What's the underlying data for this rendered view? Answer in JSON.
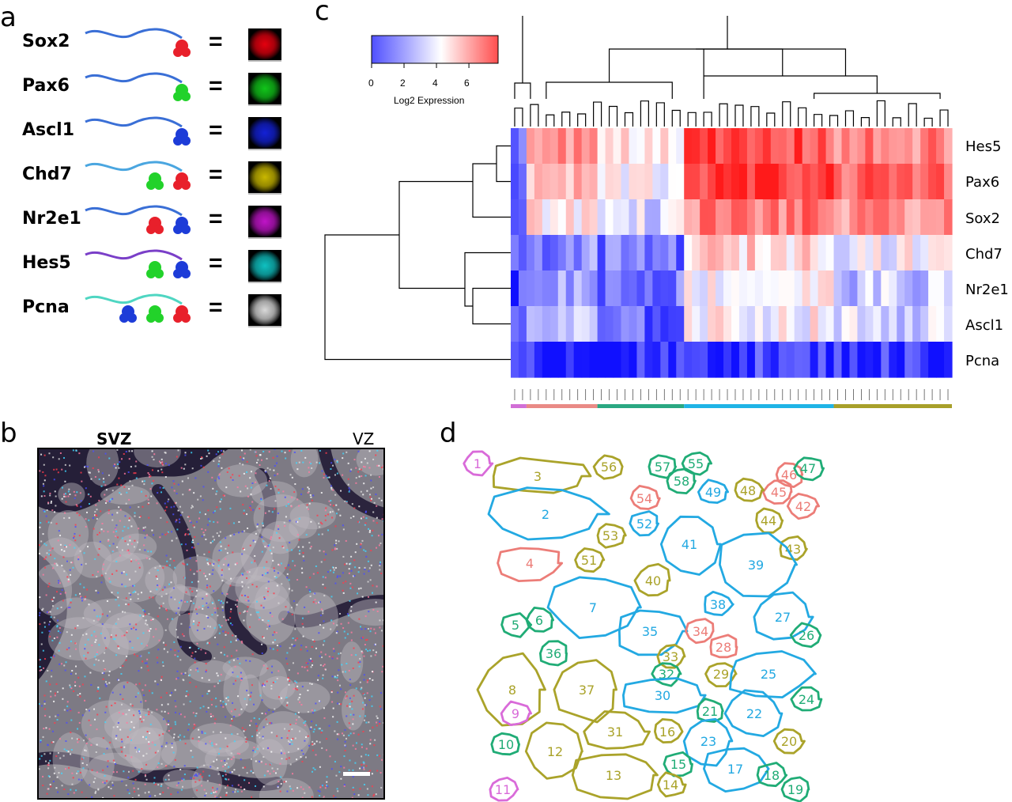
{
  "panels": {
    "a": "a",
    "b": "b",
    "c": "c",
    "d": "d"
  },
  "panel_a": {
    "genes": [
      {
        "name": "Sox2",
        "probe_colors": [
          "#e8202b"
        ],
        "tail_color": "#3a6fd6",
        "swatch": "#e4000f"
      },
      {
        "name": "Pax6",
        "probe_colors": [
          "#22d22a"
        ],
        "tail_color": "#3a6fd6",
        "swatch": "#11c51a"
      },
      {
        "name": "Ascl1",
        "probe_colors": [
          "#1d3cd8"
        ],
        "tail_color": "#3a6fd6",
        "swatch": "#1321d6"
      },
      {
        "name": "Chd7",
        "probe_colors": [
          "#22d22a",
          "#e8202b"
        ],
        "tail_color": "#4aa6e0",
        "swatch": "#c9b800"
      },
      {
        "name": "Nr2e1",
        "probe_colors": [
          "#e8202b",
          "#1d3cd8"
        ],
        "tail_color": "#3a6fd6",
        "swatch": "#c014c8"
      },
      {
        "name": "Hes5",
        "probe_colors": [
          "#22d22a",
          "#1d3cd8"
        ],
        "tail_color": "#7a3fc8",
        "swatch": "#0fc1c1"
      },
      {
        "name": "Pcna",
        "probe_colors": [
          "#1d3cd8",
          "#22d22a",
          "#e8202b"
        ],
        "tail_color": "#4fd6c2",
        "swatch": "#d9d9d9"
      }
    ],
    "equals": "="
  },
  "panel_b": {
    "left_label": "SVZ",
    "right_label": "VZ"
  },
  "panel_c": {
    "legend": {
      "title": "Log2 Expression",
      "ticks": [
        "0",
        "2",
        "4",
        "6"
      ],
      "range": [
        0,
        7.8
      ]
    },
    "row_labels": [
      "Hes5",
      "Pax6",
      "Sox2",
      "Chd7",
      "Nr2e1",
      "Ascl1",
      "Pcna"
    ],
    "cluster_bar_colors": [
      "#d16fd6",
      "#e98a86",
      "#2aa882",
      "#1fb4e6",
      "#a8a02a"
    ],
    "colors": {
      "low": "#1010ff",
      "mid": "#ffffff",
      "high": "#ff1a1a"
    }
  },
  "panel_d": {
    "cell_colors": {
      "olive": "#aaa32a",
      "blue": "#23a9e2",
      "green": "#20ac76",
      "salmon": "#ec7d78",
      "magenta": "#d96bd9"
    },
    "cells": [
      {
        "id": "1",
        "group": "magenta"
      },
      {
        "id": "3",
        "group": "olive"
      },
      {
        "id": "56",
        "group": "olive"
      },
      {
        "id": "57",
        "group": "green"
      },
      {
        "id": "55",
        "group": "green"
      },
      {
        "id": "58",
        "group": "green"
      },
      {
        "id": "46",
        "group": "salmon"
      },
      {
        "id": "47",
        "group": "green"
      },
      {
        "id": "45",
        "group": "salmon"
      },
      {
        "id": "42",
        "group": "salmon"
      },
      {
        "id": "48",
        "group": "olive"
      },
      {
        "id": "49",
        "group": "blue"
      },
      {
        "id": "54",
        "group": "salmon"
      },
      {
        "id": "2",
        "group": "blue"
      },
      {
        "id": "52",
        "group": "blue"
      },
      {
        "id": "53",
        "group": "olive"
      },
      {
        "id": "44",
        "group": "olive"
      },
      {
        "id": "41",
        "group": "blue"
      },
      {
        "id": "43",
        "group": "olive"
      },
      {
        "id": "51",
        "group": "olive"
      },
      {
        "id": "4",
        "group": "salmon"
      },
      {
        "id": "39",
        "group": "blue"
      },
      {
        "id": "40",
        "group": "olive"
      },
      {
        "id": "7",
        "group": "blue"
      },
      {
        "id": "38",
        "group": "blue"
      },
      {
        "id": "5",
        "group": "green"
      },
      {
        "id": "6",
        "group": "green"
      },
      {
        "id": "35",
        "group": "blue"
      },
      {
        "id": "34",
        "group": "salmon"
      },
      {
        "id": "27",
        "group": "blue"
      },
      {
        "id": "26",
        "group": "green"
      },
      {
        "id": "36",
        "group": "green"
      },
      {
        "id": "28",
        "group": "salmon"
      },
      {
        "id": "33",
        "group": "olive"
      },
      {
        "id": "32",
        "group": "green"
      },
      {
        "id": "29",
        "group": "olive"
      },
      {
        "id": "25",
        "group": "blue"
      },
      {
        "id": "8",
        "group": "olive"
      },
      {
        "id": "37",
        "group": "olive"
      },
      {
        "id": "30",
        "group": "blue"
      },
      {
        "id": "24",
        "group": "green"
      },
      {
        "id": "9",
        "group": "magenta"
      },
      {
        "id": "21",
        "group": "green"
      },
      {
        "id": "22",
        "group": "blue"
      },
      {
        "id": "31",
        "group": "olive"
      },
      {
        "id": "16",
        "group": "olive"
      },
      {
        "id": "10",
        "group": "green"
      },
      {
        "id": "12",
        "group": "olive"
      },
      {
        "id": "23",
        "group": "blue"
      },
      {
        "id": "20",
        "group": "olive"
      },
      {
        "id": "15",
        "group": "green"
      },
      {
        "id": "17",
        "group": "blue"
      },
      {
        "id": "18",
        "group": "green"
      },
      {
        "id": "13",
        "group": "olive"
      },
      {
        "id": "14",
        "group": "olive"
      },
      {
        "id": "19",
        "group": "green"
      },
      {
        "id": "11",
        "group": "magenta"
      }
    ]
  }
}
